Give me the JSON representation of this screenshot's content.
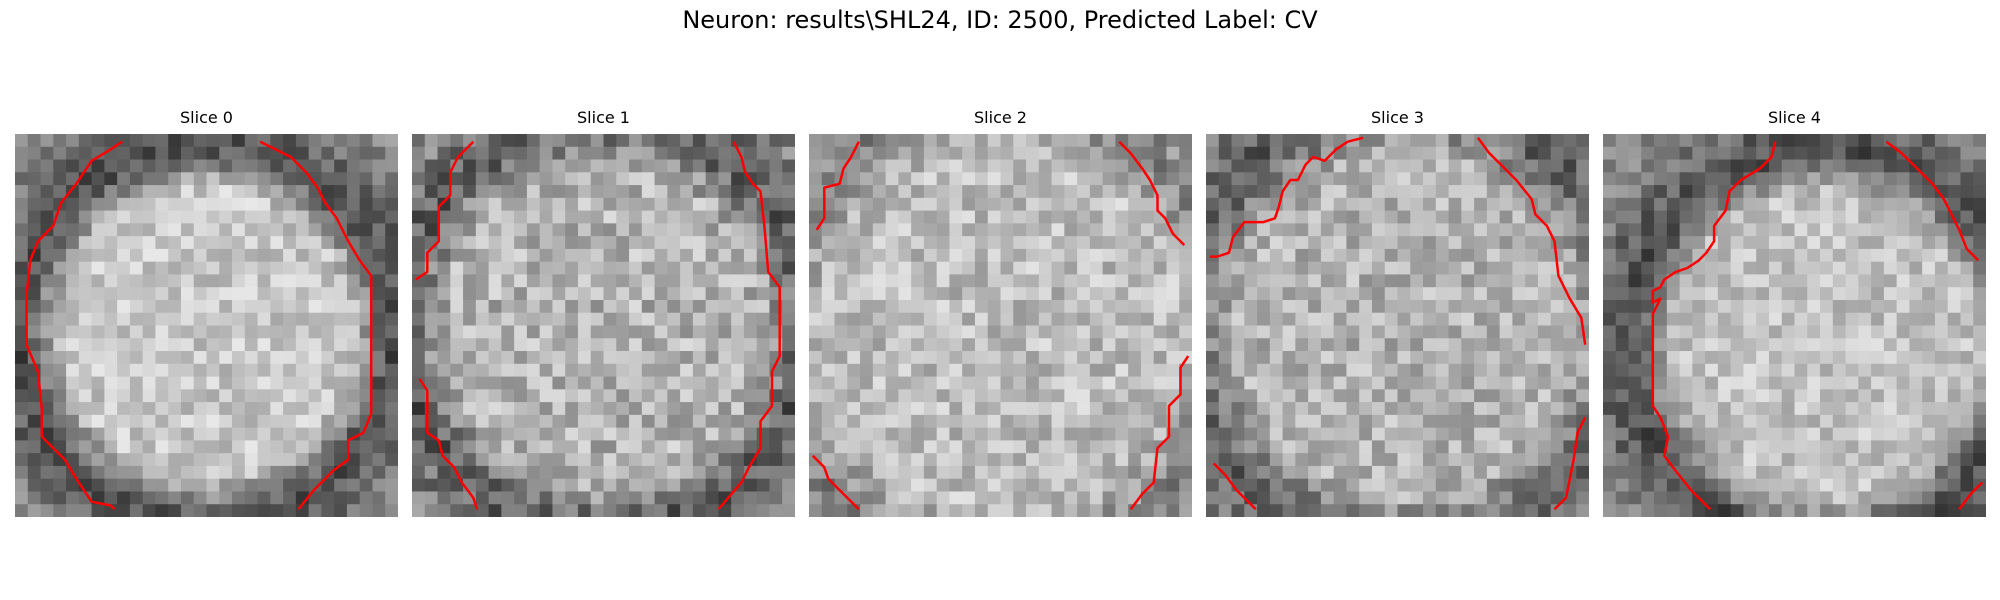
{
  "figure": {
    "title": "Neuron: results\\SHL24, ID: 2500, Predicted Label: CV"
  },
  "panels": [
    {
      "title": "Slice 0"
    },
    {
      "title": "Slice 1"
    },
    {
      "title": "Slice 2"
    },
    {
      "title": "Slice 3"
    },
    {
      "title": "Slice 4"
    }
  ],
  "colors": {
    "contour": "#ff0000",
    "colormap": "grayscale"
  }
}
